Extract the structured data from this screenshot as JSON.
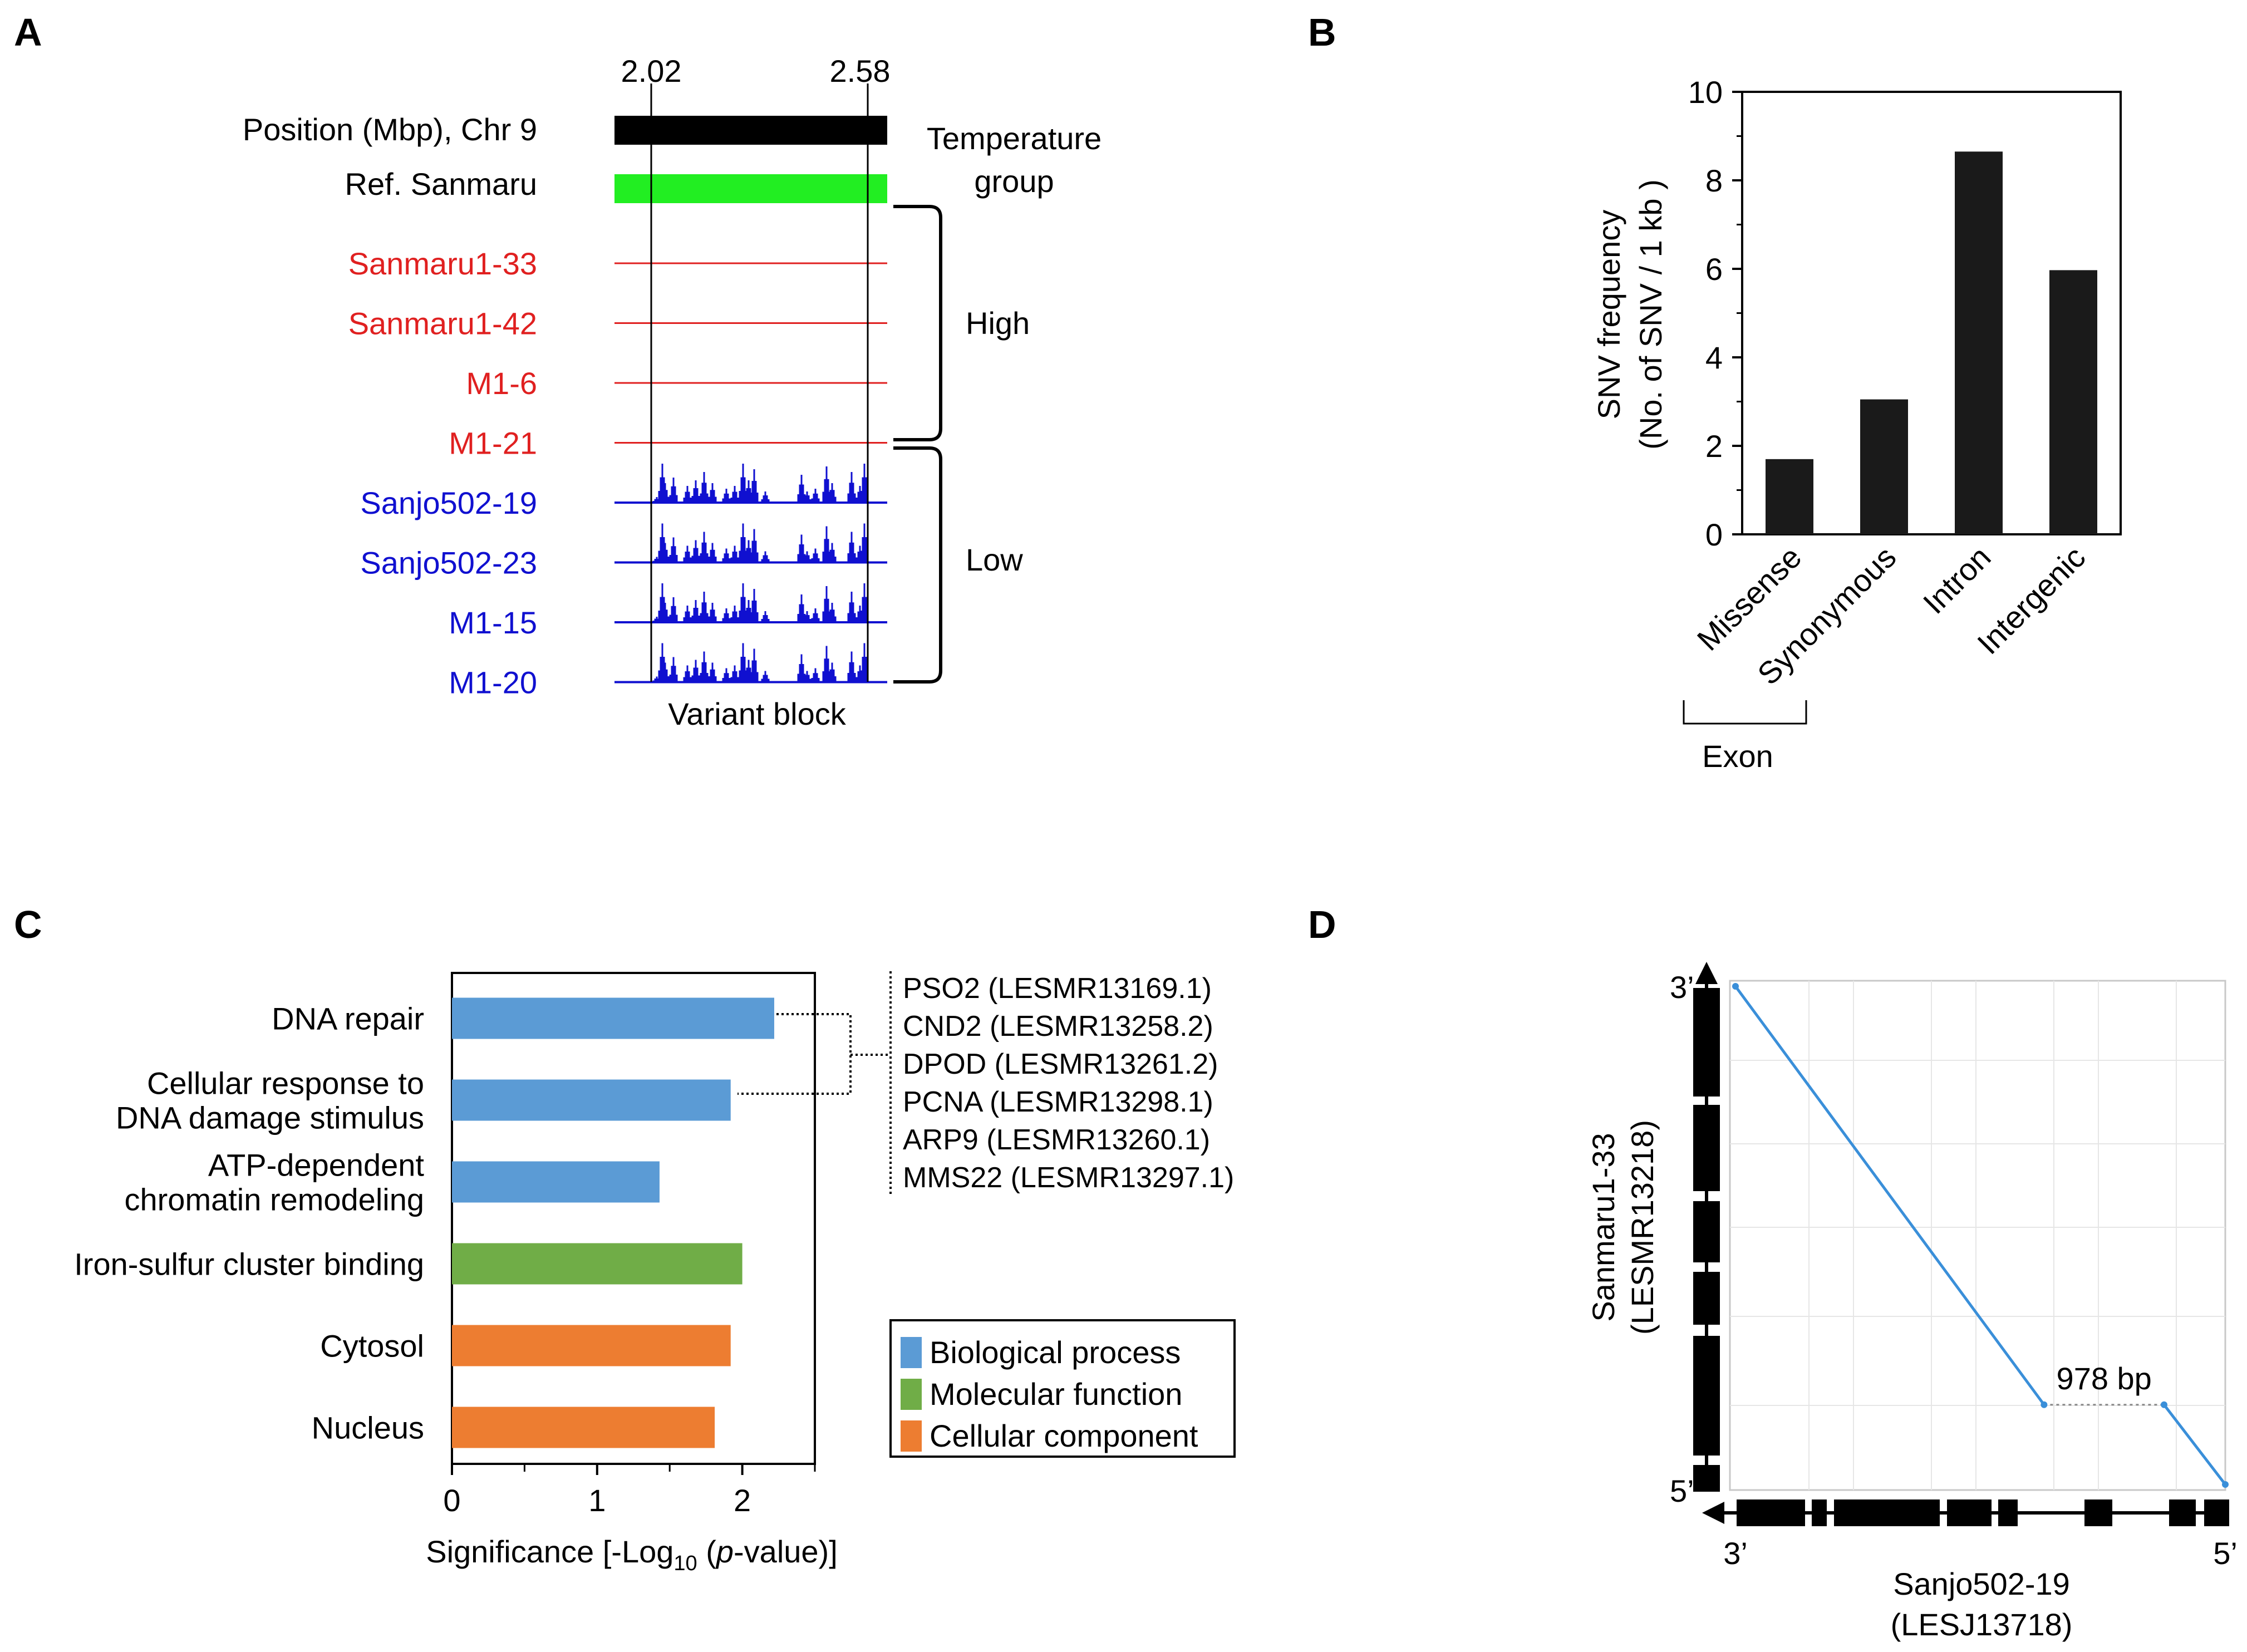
{
  "panels": {
    "a": {
      "letter": "A",
      "tick_left": "2.02",
      "tick_right": "2.58",
      "position_label": "Position (Mbp), Chr 9",
      "ref_label": "Ref. Sanmaru",
      "temperature_label_1": "Temperature",
      "temperature_label_2": "group",
      "high_label": "High",
      "low_label": "Low",
      "variant_block_label": "Variant block",
      "high_samples": [
        "Sanmaru1-33",
        "Sanmaru1-42",
        "M1-6",
        "M1-21"
      ],
      "low_samples": [
        "Sanjo502-19",
        "Sanjo502-23",
        "M1-15",
        "M1-20"
      ],
      "colors": {
        "high": "#e02020",
        "low": "#1010d0",
        "ref": "#22ee22",
        "position": "#000000"
      }
    },
    "b": {
      "letter": "B",
      "ylabel_line1": "SNV frequency",
      "ylabel_line2": "(No. of SNV / 1 kb )",
      "yticks": [
        "0",
        "2",
        "4",
        "6",
        "8",
        "10"
      ],
      "exon_label": "Exon"
    },
    "c": {
      "letter": "C",
      "xticks": [
        "0",
        "1",
        "2"
      ],
      "xlabel_prefix": "Significance [-Log",
      "xlabel_sub": "10",
      "xlabel_mid": " (",
      "xlabel_italic": "p",
      "xlabel_suffix": "-value)]",
      "genes": [
        "PSO2 (LESMR13169.1)",
        "CND2 (LESMR13258.2)",
        "DPOD (LESMR13261.2)",
        "PCNA (LESMR13298.1)",
        "ARP9 (LESMR13260.1)",
        "MMS22 (LESMR13297.1)"
      ],
      "legend": [
        {
          "label": "Biological process",
          "color": "#5b9bd5"
        },
        {
          "label": "Molecular function",
          "color": "#70ad47"
        },
        {
          "label": "Cellular component",
          "color": "#ed7d31"
        }
      ]
    },
    "d": {
      "letter": "D",
      "y_top": "3’",
      "y_bottom": "5’",
      "x_left": "3’",
      "x_right": "5’",
      "ylabel_line1": "Sanmaru1-33",
      "ylabel_line2": "(LESMR13218)",
      "xlabel_line1": "Sanjo502-19",
      "xlabel_line2": "(LESJ13718)",
      "gap_label": "978 bp",
      "line_color": "#3a8fd9"
    }
  },
  "chart_data": [
    {
      "type": "bar",
      "categories": [
        "Missense",
        "Synonymous",
        "Intron",
        "Intergenic"
      ],
      "values": [
        1.7,
        3.05,
        8.65,
        5.97
      ],
      "ylim": [
        0,
        10
      ],
      "group_labels": [
        {
          "label": "Exon",
          "categories": [
            "Missense",
            "Synonymous"
          ]
        }
      ]
    },
    {
      "type": "bar",
      "orientation": "horizontal",
      "categories": [
        [
          "DNA repair"
        ],
        [
          "Cellular response to",
          "DNA damage stimulus"
        ],
        [
          "ATP-dependent",
          "chromatin remodeling"
        ],
        [
          "Iron-sulfur cluster binding"
        ],
        [
          "Cytosol"
        ],
        [
          "Nucleus"
        ]
      ],
      "values": [
        2.22,
        1.92,
        1.43,
        2.0,
        1.92,
        1.81
      ],
      "groups": [
        "Biological process",
        "Biological process",
        "Biological process",
        "Molecular function",
        "Cellular component",
        "Cellular component"
      ],
      "xlim": [
        0,
        2.5
      ]
    },
    {
      "type": "line",
      "x": [
        0.0,
        0.63,
        0.875,
        1.0
      ],
      "y": [
        1.0,
        0.16,
        0.16,
        0.0
      ],
      "gap_between_points": [
        1,
        2
      ]
    }
  ]
}
